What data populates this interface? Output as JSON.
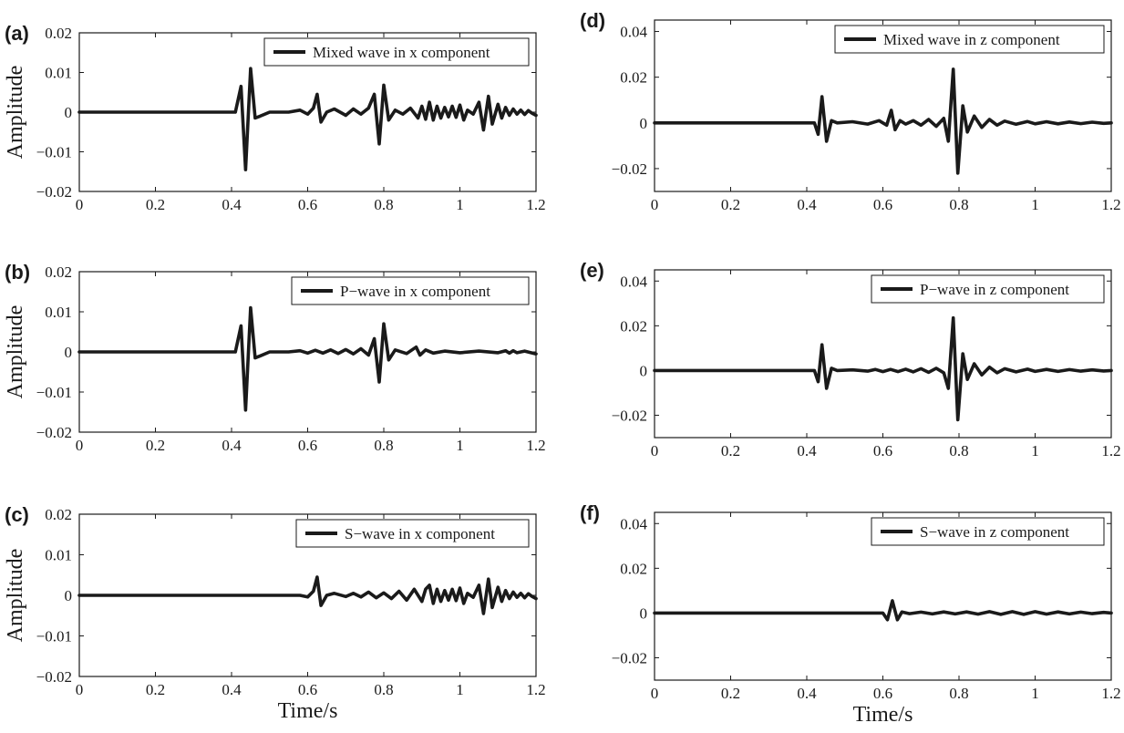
{
  "chart_data": [
    {
      "type": "line",
      "panel_label": "(a)",
      "ylabel": "Amplitude",
      "xlabel": "",
      "xlim": [
        0,
        1.2
      ],
      "ylim": [
        -0.02,
        0.02
      ],
      "xticks": [
        "0",
        "0.2",
        "0.4",
        "0.6",
        "0.8",
        "1",
        "1.2"
      ],
      "yticks": [
        "0.02",
        "0.01",
        "0",
        "−0.01",
        "−0.02"
      ],
      "legend": "top-right",
      "series": [
        {
          "name": "Mixed wave in x component",
          "x": [
            0,
            0.38,
            0.41,
            0.425,
            0.437,
            0.45,
            0.462,
            0.475,
            0.5,
            0.55,
            0.58,
            0.6,
            0.615,
            0.625,
            0.635,
            0.65,
            0.67,
            0.7,
            0.72,
            0.74,
            0.76,
            0.775,
            0.788,
            0.8,
            0.813,
            0.83,
            0.85,
            0.87,
            0.89,
            0.9,
            0.91,
            0.92,
            0.93,
            0.94,
            0.95,
            0.96,
            0.97,
            0.98,
            0.99,
            1.0,
            1.01,
            1.02,
            1.035,
            1.05,
            1.062,
            1.075,
            1.085,
            1.1,
            1.11,
            1.12,
            1.13,
            1.14,
            1.15,
            1.16,
            1.17,
            1.18,
            1.19,
            1.2
          ],
          "y": [
            0,
            0,
            0,
            0.0065,
            -0.0145,
            0.011,
            -0.0015,
            -0.001,
            0,
            0,
            0.0005,
            -0.0005,
            0.001,
            0.0045,
            -0.0025,
            0,
            0.0008,
            -0.0008,
            0.0008,
            -0.0005,
            0.001,
            0.0045,
            -0.008,
            0.0068,
            -0.002,
            0.0005,
            -0.0005,
            0.001,
            -0.0015,
            0.0015,
            -0.0018,
            0.0025,
            -0.002,
            0.0015,
            -0.0015,
            0.0012,
            -0.0012,
            0.0015,
            -0.0013,
            0.0018,
            -0.002,
            0.0005,
            -0.0005,
            0.0025,
            -0.0045,
            0.004,
            -0.003,
            0.002,
            -0.0015,
            0.0012,
            -0.0008,
            0.0008,
            -0.0005,
            0.0005,
            -0.0006,
            0.0004,
            -0.0003,
            -0.0008
          ]
        }
      ]
    },
    {
      "type": "line",
      "panel_label": "(b)",
      "ylabel": "Amplitude",
      "xlabel": "",
      "xlim": [
        0,
        1.2
      ],
      "ylim": [
        -0.02,
        0.02
      ],
      "xticks": [
        "0",
        "0.2",
        "0.4",
        "0.6",
        "0.8",
        "1",
        "1.2"
      ],
      "yticks": [
        "0.02",
        "0.01",
        "0",
        "−0.01",
        "−0.02"
      ],
      "legend": "top-right",
      "series": [
        {
          "name": "P−wave in x component",
          "x": [
            0,
            0.38,
            0.41,
            0.425,
            0.437,
            0.45,
            0.462,
            0.475,
            0.5,
            0.55,
            0.58,
            0.6,
            0.62,
            0.64,
            0.66,
            0.68,
            0.7,
            0.72,
            0.74,
            0.76,
            0.775,
            0.788,
            0.8,
            0.813,
            0.83,
            0.86,
            0.885,
            0.895,
            0.91,
            0.93,
            0.96,
            1.0,
            1.05,
            1.1,
            1.12,
            1.13,
            1.14,
            1.15,
            1.17,
            1.2
          ],
          "y": [
            0,
            0,
            0,
            0.0065,
            -0.0145,
            0.011,
            -0.0015,
            -0.001,
            0,
            0,
            0.0003,
            -0.0003,
            0.0004,
            -0.0003,
            0.0005,
            -0.0004,
            0.0006,
            -0.0005,
            0.0008,
            -0.0008,
            0.0033,
            -0.0075,
            0.007,
            -0.002,
            0.0005,
            -0.0004,
            0.0012,
            -0.0008,
            0.0005,
            -0.0003,
            0.0002,
            -0.0002,
            0.0002,
            -0.0002,
            0.0003,
            -0.0003,
            0.0003,
            -0.0002,
            0.0002,
            -0.0005
          ]
        }
      ]
    },
    {
      "type": "line",
      "panel_label": "(c)",
      "ylabel": "Amplitude",
      "xlabel": "Time/s",
      "xlim": [
        0,
        1.2
      ],
      "ylim": [
        -0.02,
        0.02
      ],
      "xticks": [
        "0",
        "0.2",
        "0.4",
        "0.6",
        "0.8",
        "1",
        "1.2"
      ],
      "yticks": [
        "0.02",
        "0.01",
        "0",
        "−0.01",
        "−0.02"
      ],
      "legend": "top-right",
      "series": [
        {
          "name": "S−wave in x component",
          "x": [
            0,
            0.58,
            0.6,
            0.615,
            0.625,
            0.635,
            0.65,
            0.67,
            0.7,
            0.72,
            0.74,
            0.76,
            0.78,
            0.8,
            0.82,
            0.84,
            0.86,
            0.88,
            0.9,
            0.91,
            0.92,
            0.93,
            0.94,
            0.95,
            0.96,
            0.97,
            0.98,
            0.99,
            1.0,
            1.01,
            1.02,
            1.035,
            1.05,
            1.062,
            1.075,
            1.085,
            1.1,
            1.11,
            1.12,
            1.13,
            1.14,
            1.15,
            1.16,
            1.17,
            1.18,
            1.19,
            1.2
          ],
          "y": [
            0,
            0,
            -0.0004,
            0.001,
            0.0045,
            -0.0025,
            0,
            0.0005,
            -0.0003,
            0.0005,
            -0.0004,
            0.0008,
            -0.0006,
            0.0006,
            -0.0008,
            0.001,
            -0.0012,
            0.0015,
            -0.0015,
            0.0015,
            0.0025,
            -0.002,
            0.0015,
            -0.0015,
            0.0012,
            -0.0012,
            0.0015,
            -0.0013,
            0.0018,
            -0.002,
            0.0005,
            -0.0005,
            0.0025,
            -0.0045,
            0.004,
            -0.003,
            0.002,
            -0.0015,
            0.0012,
            -0.0008,
            0.0008,
            -0.0005,
            0.0005,
            -0.0006,
            0.0004,
            -0.0003,
            -0.0008
          ]
        }
      ]
    },
    {
      "type": "line",
      "panel_label": "(d)",
      "ylabel": "",
      "xlabel": "",
      "xlim": [
        0,
        1.2
      ],
      "ylim": [
        -0.03,
        0.045
      ],
      "xticks": [
        "0",
        "0.2",
        "0.4",
        "0.6",
        "0.8",
        "1",
        "1.2"
      ],
      "yticks": [
        "0.04",
        "0.02",
        "0",
        "−0.02"
      ],
      "legend": "top-right",
      "series": [
        {
          "name": "Mixed wave in z component",
          "x": [
            0,
            0.38,
            0.42,
            0.43,
            0.44,
            0.452,
            0.465,
            0.48,
            0.52,
            0.56,
            0.59,
            0.61,
            0.622,
            0.632,
            0.645,
            0.66,
            0.68,
            0.7,
            0.72,
            0.74,
            0.76,
            0.772,
            0.785,
            0.797,
            0.81,
            0.822,
            0.84,
            0.86,
            0.88,
            0.9,
            0.92,
            0.95,
            0.98,
            1.0,
            1.03,
            1.06,
            1.09,
            1.12,
            1.15,
            1.18,
            1.2
          ],
          "y": [
            0,
            0,
            0,
            -0.005,
            0.0115,
            -0.008,
            0.001,
            0,
            0.0005,
            -0.0005,
            0.001,
            -0.001,
            0.0055,
            -0.003,
            0.001,
            -0.0005,
            0.001,
            -0.001,
            0.0015,
            -0.0015,
            0.002,
            -0.008,
            0.0235,
            -0.022,
            0.0075,
            -0.004,
            0.003,
            -0.002,
            0.0015,
            -0.001,
            0.0008,
            -0.0006,
            0.0006,
            -0.0004,
            0.0005,
            -0.0004,
            0.0004,
            -0.0003,
            0.0003,
            -0.0002,
            0
          ]
        }
      ]
    },
    {
      "type": "line",
      "panel_label": "(e)",
      "ylabel": "",
      "xlabel": "",
      "xlim": [
        0,
        1.2
      ],
      "ylim": [
        -0.03,
        0.045
      ],
      "xticks": [
        "0",
        "0.2",
        "0.4",
        "0.6",
        "0.8",
        "1",
        "1.2"
      ],
      "yticks": [
        "0.04",
        "0.02",
        "0",
        "−0.02"
      ],
      "legend": "top-right",
      "series": [
        {
          "name": "P−wave in z component",
          "x": [
            0,
            0.38,
            0.42,
            0.43,
            0.44,
            0.452,
            0.465,
            0.48,
            0.52,
            0.56,
            0.58,
            0.6,
            0.62,
            0.64,
            0.66,
            0.68,
            0.7,
            0.72,
            0.74,
            0.76,
            0.772,
            0.785,
            0.797,
            0.81,
            0.822,
            0.84,
            0.86,
            0.88,
            0.9,
            0.92,
            0.95,
            0.98,
            1.0,
            1.03,
            1.06,
            1.09,
            1.12,
            1.15,
            1.18,
            1.2
          ],
          "y": [
            0,
            0,
            0,
            -0.005,
            0.0115,
            -0.008,
            0.001,
            0,
            0.0003,
            -0.0003,
            0.0005,
            -0.0005,
            0.0005,
            -0.0005,
            0.0006,
            -0.0006,
            0.0008,
            -0.0008,
            0.001,
            -0.001,
            -0.008,
            0.0235,
            -0.022,
            0.0075,
            -0.004,
            0.003,
            -0.002,
            0.0015,
            -0.001,
            0.0008,
            -0.0006,
            0.0006,
            -0.0004,
            0.0005,
            -0.0004,
            0.0004,
            -0.0003,
            0.0003,
            -0.0002,
            0
          ]
        }
      ]
    },
    {
      "type": "line",
      "panel_label": "(f)",
      "ylabel": "",
      "xlabel": "Time/s",
      "xlim": [
        0,
        1.2
      ],
      "ylim": [
        -0.03,
        0.045
      ],
      "xticks": [
        "0",
        "0.2",
        "0.4",
        "0.6",
        "0.8",
        "1",
        "1.2"
      ],
      "yticks": [
        "0.04",
        "0.02",
        "0",
        "−0.02"
      ],
      "legend": "top-right",
      "series": [
        {
          "name": "S−wave in z component",
          "x": [
            0,
            0.58,
            0.6,
            0.612,
            0.625,
            0.638,
            0.65,
            0.67,
            0.7,
            0.73,
            0.76,
            0.79,
            0.82,
            0.85,
            0.88,
            0.91,
            0.94,
            0.97,
            1.0,
            1.03,
            1.06,
            1.09,
            1.12,
            1.15,
            1.18,
            1.2
          ],
          "y": [
            0,
            0,
            0,
            -0.003,
            0.0055,
            -0.003,
            0.0005,
            -0.0003,
            0.0004,
            -0.0004,
            0.0005,
            -0.0004,
            0.0005,
            -0.0005,
            0.0006,
            -0.0006,
            0.0006,
            -0.0006,
            0.0006,
            -0.0005,
            0.0005,
            -0.0004,
            0.0004,
            -0.0003,
            0.0003,
            0
          ]
        }
      ]
    }
  ]
}
